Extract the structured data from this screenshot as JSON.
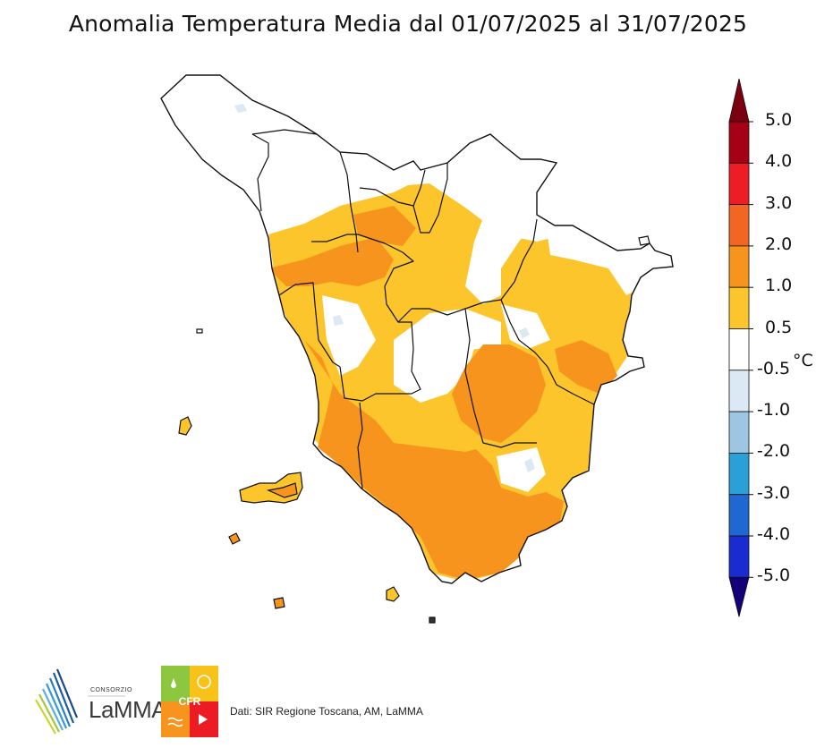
{
  "title": "Anomalia Temperatura Media dal 01/07/2025 al 31/07/2025",
  "colorbar": {
    "unit": "°C",
    "ticks": [
      "5.0",
      "4.0",
      "3.0",
      "2.0",
      "1.0",
      "0.5",
      "-0.5",
      "-1.0",
      "-2.0",
      "-3.0",
      "-4.0",
      "-5.0"
    ],
    "bins": [
      {
        "from": 4.0,
        "to": 5.0,
        "color": "#a50016"
      },
      {
        "from": 3.0,
        "to": 4.0,
        "color": "#ee1c24"
      },
      {
        "from": 2.0,
        "to": 3.0,
        "color": "#f26522"
      },
      {
        "from": 1.0,
        "to": 2.0,
        "color": "#f7941d"
      },
      {
        "from": 0.5,
        "to": 1.0,
        "color": "#fcc52c"
      },
      {
        "from": -0.5,
        "to": 0.5,
        "color": "#ffffff"
      },
      {
        "from": -1.0,
        "to": -0.5,
        "color": "#dbe9f5"
      },
      {
        "from": -2.0,
        "to": -1.0,
        "color": "#9ec5e2"
      },
      {
        "from": -3.0,
        "to": -2.0,
        "color": "#2a9fd8"
      },
      {
        "from": -4.0,
        "to": -3.0,
        "color": "#1f67d1"
      },
      {
        "from": -5.0,
        "to": -4.0,
        "color": "#1a2bd1"
      }
    ],
    "over_color": "#7a0010",
    "under_color": "#12007a"
  },
  "map": {
    "region": "Toscana",
    "dominant_classes": [
      "0.5 to 1.0",
      "1.0 to 2.0",
      "-0.5 to 0.5"
    ]
  },
  "footer": {
    "source": "Dati: SIR Regione Toscana, AM, LaMMA",
    "logo_lamma_small": "CONSORZIO",
    "logo_lamma_name": "LaMMA",
    "logo_cfr": "CFR"
  }
}
